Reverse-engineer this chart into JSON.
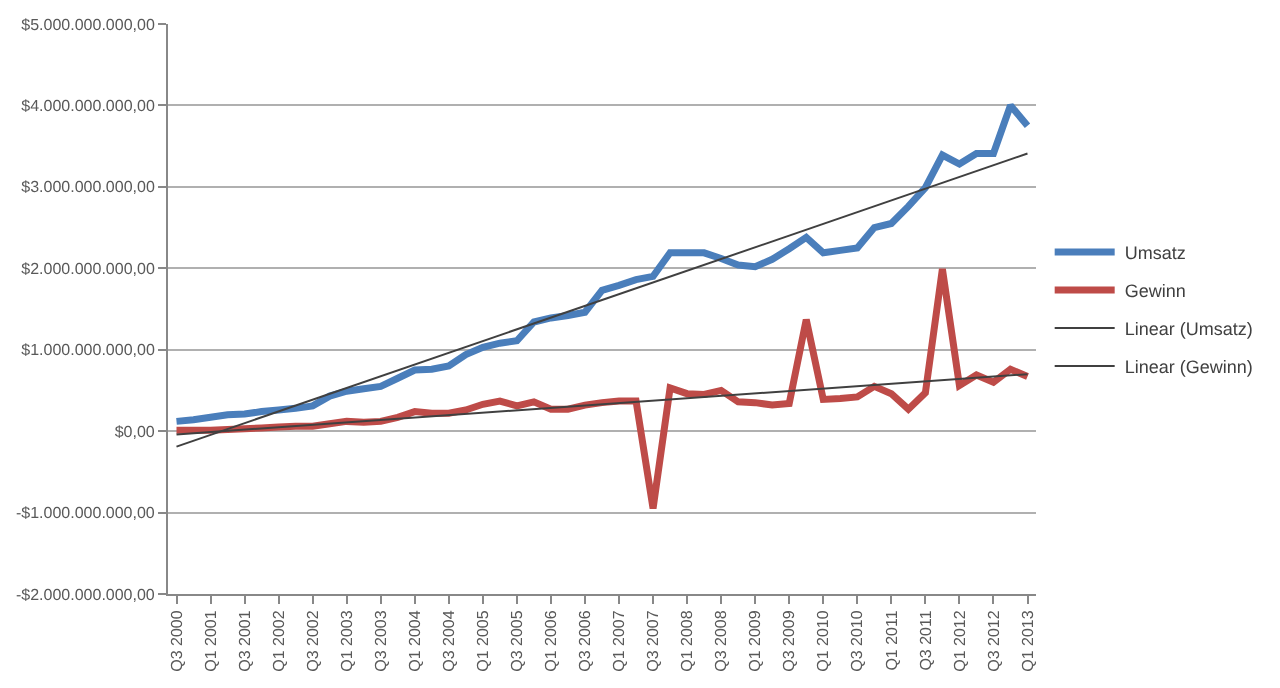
{
  "chart_data": {
    "type": "line",
    "categories": [
      "Q3 2000",
      null,
      "Q1 2001",
      null,
      "Q3 2001",
      null,
      "Q1 2002",
      null,
      "Q3 2002",
      null,
      "Q1 2003",
      null,
      "Q3 2003",
      null,
      "Q1 2004",
      null,
      "Q3 2004",
      null,
      "Q1 2005",
      null,
      "Q3 2005",
      null,
      "Q1 2006",
      null,
      "Q3 2006",
      null,
      "Q1 2007",
      null,
      "Q3 2007",
      null,
      "Q1 2008",
      null,
      "Q3 2008",
      null,
      "Q1 2009",
      null,
      "Q3 2009",
      null,
      "Q1 2010",
      null,
      "Q3 2010",
      null,
      "Q1 2011",
      null,
      "Q3 2011",
      null,
      "Q1 2012",
      null,
      "Q3 2012",
      null,
      "Q1 2013"
    ],
    "series": [
      {
        "name": "Umsatz",
        "color": "#4a7ebb",
        "values": [
          120000000,
          140000000,
          170000000,
          200000000,
          210000000,
          240000000,
          260000000,
          280000000,
          310000000,
          430000000,
          490000000,
          520000000,
          550000000,
          650000000,
          750000000,
          760000000,
          800000000,
          940000000,
          1030000000,
          1080000000,
          1110000000,
          1340000000,
          1390000000,
          1420000000,
          1460000000,
          1730000000,
          1790000000,
          1860000000,
          1900000000,
          2190000000,
          2190000000,
          2190000000,
          2120000000,
          2040000000,
          2020000000,
          2110000000,
          2240000000,
          2380000000,
          2190000000,
          2220000000,
          2250000000,
          2500000000,
          2550000000,
          2760000000,
          2990000000,
          3390000000,
          3280000000,
          3410000000,
          3410000000,
          4000000000,
          3750000000
        ]
      },
      {
        "name": "Gewinn",
        "color": "#be4b48",
        "values": [
          10000000,
          10000000,
          10000000,
          20000000,
          30000000,
          40000000,
          50000000,
          60000000,
          60000000,
          90000000,
          120000000,
          110000000,
          120000000,
          170000000,
          240000000,
          220000000,
          220000000,
          260000000,
          330000000,
          370000000,
          310000000,
          360000000,
          270000000,
          270000000,
          320000000,
          350000000,
          370000000,
          370000000,
          -950000000,
          530000000,
          460000000,
          450000000,
          500000000,
          360000000,
          350000000,
          320000000,
          340000000,
          1370000000,
          390000000,
          400000000,
          420000000,
          550000000,
          460000000,
          270000000,
          470000000,
          1990000000,
          560000000,
          690000000,
          600000000,
          760000000,
          670000000
        ]
      },
      {
        "name": "Linear (Umsatz)",
        "color": "#404040",
        "values": [
          -190000000,
          null,
          null,
          null,
          null,
          null,
          null,
          null,
          null,
          null,
          null,
          null,
          null,
          null,
          null,
          null,
          null,
          null,
          null,
          null,
          null,
          null,
          null,
          null,
          null,
          null,
          null,
          null,
          null,
          null,
          null,
          null,
          null,
          null,
          null,
          null,
          null,
          null,
          null,
          null,
          null,
          null,
          null,
          null,
          null,
          null,
          null,
          null,
          null,
          null,
          3410000000
        ]
      },
      {
        "name": "Linear (Gewinn)",
        "color": "#404040",
        "values": [
          -40000000,
          null,
          null,
          null,
          null,
          null,
          null,
          null,
          null,
          null,
          null,
          null,
          null,
          null,
          null,
          null,
          null,
          null,
          null,
          null,
          null,
          null,
          null,
          null,
          null,
          null,
          null,
          null,
          null,
          null,
          null,
          null,
          null,
          null,
          null,
          null,
          null,
          null,
          null,
          null,
          null,
          null,
          null,
          null,
          null,
          null,
          null,
          null,
          null,
          null,
          700000000
        ]
      }
    ],
    "ylim": [
      -2000000000,
      5000000000
    ],
    "yticks": [
      {
        "value": -2000000000,
        "label": "-$2.000.000.000,00"
      },
      {
        "value": -1000000000,
        "label": "-$1.000.000.000,00"
      },
      {
        "value": 0,
        "label": "$0,00"
      },
      {
        "value": 1000000000,
        "label": "$1.000.000.000,00"
      },
      {
        "value": 2000000000,
        "label": "$2.000.000.000,00"
      },
      {
        "value": 3000000000,
        "label": "$3.000.000.000,00"
      },
      {
        "value": 4000000000,
        "label": "$4.000.000.000,00"
      },
      {
        "value": 5000000000,
        "label": "$5.000.000.000,00"
      }
    ],
    "grid": "y",
    "legend": "right",
    "marker": "none",
    "line_style": "solid"
  }
}
